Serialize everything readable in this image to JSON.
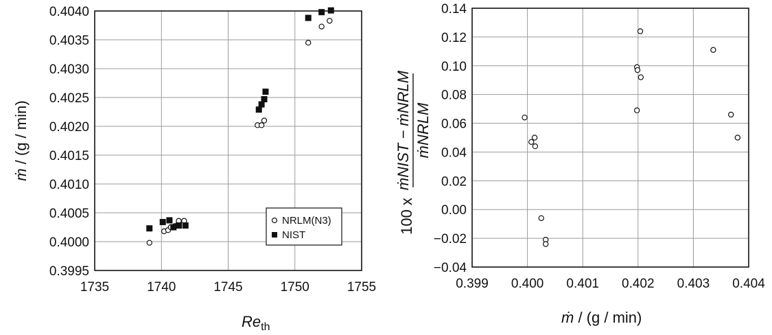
{
  "chart_data": [
    {
      "type": "scatter",
      "xlabel_main": "Re",
      "xlabel_sub": "th",
      "ylabel_mdot": "ṁ",
      "ylabel_rest": " / (g / min)",
      "xlim": [
        1735,
        1755
      ],
      "ylim": [
        0.3995,
        0.404
      ],
      "x_ticks": [
        "1735",
        "1740",
        "1745",
        "1750",
        "1755"
      ],
      "y_ticks": [
        "0.3995",
        "0.4000",
        "0.4005",
        "0.4010",
        "0.4015",
        "0.4020",
        "0.4025",
        "0.4030",
        "0.4035",
        "0.4040"
      ],
      "grid": true,
      "legend_position": "bottom-right",
      "series": [
        {
          "name": "NRLM(N3)",
          "marker": "open-circle",
          "points": [
            [
              1739.1,
              0.39998
            ],
            [
              1740.2,
              0.40018
            ],
            [
              1740.5,
              0.4002
            ],
            [
              1740.7,
              0.40025
            ],
            [
              1741.0,
              0.40027
            ],
            [
              1741.3,
              0.40036
            ],
            [
              1741.7,
              0.40036
            ],
            [
              1747.2,
              0.40202
            ],
            [
              1747.5,
              0.40202
            ],
            [
              1747.7,
              0.4021
            ],
            [
              1751.0,
              0.40345
            ],
            [
              1752.0,
              0.40373
            ],
            [
              1752.6,
              0.40383
            ]
          ]
        },
        {
          "name": "NIST",
          "marker": "filled-square",
          "points": [
            [
              1739.1,
              0.40023
            ],
            [
              1740.1,
              0.40034
            ],
            [
              1740.6,
              0.40037
            ],
            [
              1740.9,
              0.40025
            ],
            [
              1741.3,
              0.40028
            ],
            [
              1741.8,
              0.40028
            ],
            [
              1747.3,
              0.40229
            ],
            [
              1747.5,
              0.40238
            ],
            [
              1747.7,
              0.40247
            ],
            [
              1747.8,
              0.4026
            ],
            [
              1751.0,
              0.40388
            ],
            [
              1752.0,
              0.40398
            ],
            [
              1752.7,
              0.40401
            ]
          ]
        }
      ]
    },
    {
      "type": "scatter",
      "xlabel_mdot": "ṁ",
      "xlabel_rest": " / (g / min)",
      "ylabel_prefix": "100 x",
      "ylabel_numerator": "ṁNIST − ṁNRLM",
      "ylabel_denominator": "ṁNRLM",
      "xlim": [
        0.399,
        0.404
      ],
      "ylim": [
        -0.04,
        0.14
      ],
      "x_ticks": [
        "0.399",
        "0.400",
        "0.401",
        "0.402",
        "0.403",
        "0.404"
      ],
      "y_ticks": [
        "−0.04",
        "−0.02",
        "0.00",
        "0.02",
        "0.04",
        "0.06",
        "0.08",
        "0.10",
        "0.12",
        "0.14"
      ],
      "grid": true,
      "series": [
        {
          "marker": "open-circle",
          "points": [
            [
              0.39995,
              0.064
            ],
            [
              0.40007,
              0.047
            ],
            [
              0.40013,
              0.05
            ],
            [
              0.40014,
              0.044
            ],
            [
              0.40025,
              -0.006
            ],
            [
              0.40033,
              -0.021
            ],
            [
              0.40033,
              -0.024
            ],
            [
              0.40198,
              0.099
            ],
            [
              0.40199,
              0.097
            ],
            [
              0.40198,
              0.069
            ],
            [
              0.40204,
              0.124
            ],
            [
              0.40205,
              0.092
            ],
            [
              0.40336,
              0.111
            ],
            [
              0.40368,
              0.066
            ],
            [
              0.4038,
              0.05
            ]
          ]
        }
      ]
    }
  ]
}
